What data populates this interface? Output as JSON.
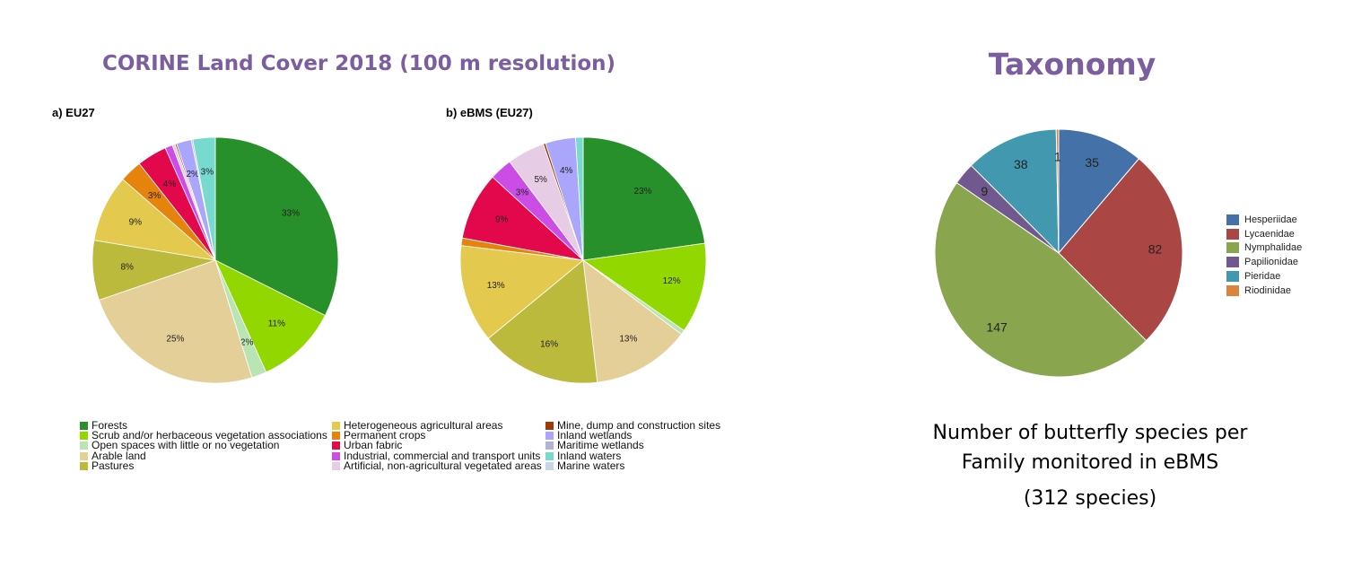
{
  "header": {
    "corine_title": "CORINE Land Cover 2018 (100 m resolution)",
    "taxonomy_title": "Taxonomy"
  },
  "caption": {
    "line1": "Number of butterfly species per",
    "line2": "Family monitored in eBMS",
    "line3": "(312 species)"
  },
  "colors": {
    "title_purple": "#7b5ea0"
  },
  "landcover_legend": [
    {
      "label": "Forests",
      "color": "#28902a"
    },
    {
      "label": "Scrub and/or herbaceous vegetation associations",
      "color": "#93d701"
    },
    {
      "label": "Open spaces with little or no vegetation",
      "color": "#b9e4b4"
    },
    {
      "label": "Arable land",
      "color": "#e5cf98"
    },
    {
      "label": "Pastures",
      "color": "#bcba3d"
    },
    {
      "label": "Heterogeneous agricultural areas",
      "color": "#e4c94f"
    },
    {
      "label": "Permanent crops",
      "color": "#e5830c"
    },
    {
      "label": "Urban fabric",
      "color": "#e3074c"
    },
    {
      "label": "Industrial, commercial and transport units",
      "color": "#cc4de6"
    },
    {
      "label": "Artificial, non-agricultural vegetated areas",
      "color": "#e7cce6"
    },
    {
      "label": "Mine, dump and construction sites",
      "color": "#9c3a08"
    },
    {
      "label": "Inland wetlands",
      "color": "#a9a6fb"
    },
    {
      "label": "Maritime wetlands",
      "color": "#b3b3d6"
    },
    {
      "label": "Inland waters",
      "color": "#78d9cf"
    },
    {
      "label": "Marine waters",
      "color": "#c8d6e4"
    }
  ],
  "chart_data": [
    {
      "type": "pie",
      "title": "a) EU27",
      "slices": [
        {
          "label": "Forests",
          "value": 33,
          "text": "33%"
        },
        {
          "label": "Scrub and/or herbaceous vegetation associations",
          "value": 11,
          "text": "11%"
        },
        {
          "label": "Open spaces with little or no vegetation",
          "value": 2,
          "text": "2%"
        },
        {
          "label": "Arable land",
          "value": 25,
          "text": "25%"
        },
        {
          "label": "Pastures",
          "value": 8,
          "text": "8%"
        },
        {
          "label": "Heterogeneous agricultural areas",
          "value": 9,
          "text": "9%"
        },
        {
          "label": "Permanent crops",
          "value": 3,
          "text": "3%"
        },
        {
          "label": "Urban fabric",
          "value": 4,
          "text": "4%"
        },
        {
          "label": "Industrial, commercial and transport units",
          "value": 1,
          "text": ""
        },
        {
          "label": "Artificial, non-agricultural vegetated areas",
          "value": 0.4,
          "text": ""
        },
        {
          "label": "Mine, dump and construction sites",
          "value": 0.2,
          "text": ""
        },
        {
          "label": "Inland wetlands",
          "value": 2,
          "text": "2%"
        },
        {
          "label": "Maritime wetlands",
          "value": 0.2,
          "text": ""
        },
        {
          "label": "Inland waters",
          "value": 3,
          "text": "3%"
        }
      ]
    },
    {
      "type": "pie",
      "title": "b) eBMS (EU27)",
      "slices": [
        {
          "label": "Forests",
          "value": 23,
          "text": "23%"
        },
        {
          "label": "Scrub and/or herbaceous vegetation associations",
          "value": 12,
          "text": "12%"
        },
        {
          "label": "Open spaces with little or no vegetation",
          "value": 0.6,
          "text": ""
        },
        {
          "label": "Arable land",
          "value": 13,
          "text": "13%"
        },
        {
          "label": "Pastures",
          "value": 16,
          "text": "16%"
        },
        {
          "label": "Heterogeneous agricultural areas",
          "value": 13,
          "text": "13%"
        },
        {
          "label": "Permanent crops",
          "value": 1,
          "text": ""
        },
        {
          "label": "Urban fabric",
          "value": 9,
          "text": "9%"
        },
        {
          "label": "Industrial, commercial and transport units",
          "value": 3,
          "text": "3%"
        },
        {
          "label": "Artificial, non-agricultural vegetated areas",
          "value": 5,
          "text": "5%"
        },
        {
          "label": "Mine, dump and construction sites",
          "value": 0.3,
          "text": ""
        },
        {
          "label": "Inland wetlands",
          "value": 4,
          "text": "4%"
        },
        {
          "label": "Inland waters",
          "value": 1,
          "text": ""
        }
      ]
    },
    {
      "type": "pie",
      "title": "",
      "slices": [
        {
          "label": "Hesperiidae",
          "value": 35,
          "text": "35",
          "color": "#4571a9"
        },
        {
          "label": "Lycaenidae",
          "value": 82,
          "text": "82",
          "color": "#aa4643"
        },
        {
          "label": "Nymphalidae",
          "value": 147,
          "text": "147",
          "color": "#89a54e"
        },
        {
          "label": "Papilionidae",
          "value": 9,
          "text": "9",
          "color": "#71588f"
        },
        {
          "label": "Pieridae",
          "value": 38,
          "text": "38",
          "color": "#4198af"
        },
        {
          "label": "Riodinidae",
          "value": 1,
          "text": "1",
          "color": "#db843d"
        }
      ]
    }
  ]
}
